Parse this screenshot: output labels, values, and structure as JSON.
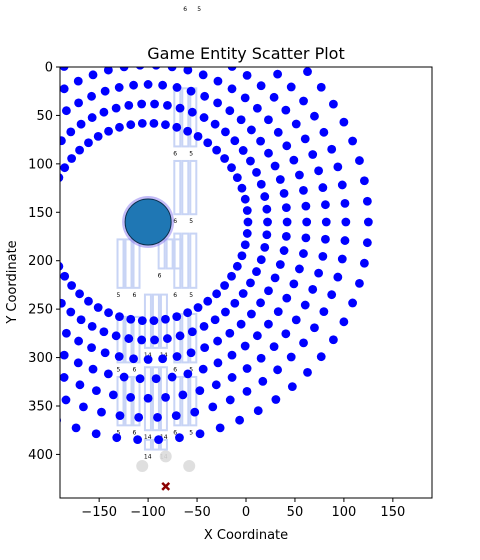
{
  "chart_data": {
    "type": "scatter",
    "title": "Game Entity Scatter Plot",
    "xlabel": "X Coordinate",
    "ylabel": "Y Coordinate",
    "xlim": [
      -190,
      190
    ],
    "ylim": [
      445,
      0
    ],
    "y_inverted": true,
    "xticks": [
      -150,
      -100,
      -50,
      0,
      50,
      100,
      150
    ],
    "yticks": [
      0,
      50,
      100,
      150,
      200,
      250,
      300,
      350,
      400
    ],
    "grid": false,
    "colors": {
      "dots": "#0000ff",
      "player": "#1f77b4",
      "player_edge": "#7b68ee",
      "bars": "#c8d4f5",
      "ghost": "#dcdcdc",
      "marker": "#8b0000"
    },
    "player": {
      "x": -100,
      "y": 160,
      "label": "player"
    },
    "marker": {
      "x": -82,
      "y": 433,
      "shape": "x"
    },
    "ghost_points": [
      [
        -106,
        412
      ],
      [
        -82,
        402
      ],
      [
        -58,
        412
      ]
    ],
    "rings": [
      {
        "center": [
          -100,
          160
        ],
        "radius": 102,
        "count": 54
      },
      {
        "center": [
          -100,
          160
        ],
        "radius": 122,
        "count": 58
      },
      {
        "center": [
          -100,
          160
        ],
        "radius": 142,
        "count": 60
      },
      {
        "center": [
          -100,
          160
        ],
        "radius": 162,
        "count": 62
      },
      {
        "center": [
          -100,
          160
        ],
        "radius": 182,
        "count": 64
      },
      {
        "center": [
          -100,
          160
        ],
        "radius": 202,
        "count": 66
      },
      {
        "center": [
          -100,
          160
        ],
        "radius": 225,
        "count": 66
      }
    ],
    "columns": [
      {
        "x": -62,
        "y_top": 22,
        "y_bottom": 82,
        "labels": [
          "6",
          "5"
        ]
      },
      {
        "x": -62,
        "y_top": 97,
        "y_bottom": 152,
        "labels": [
          "6",
          "5"
        ]
      },
      {
        "x": -62,
        "y_top": 172,
        "y_bottom": 228,
        "labels": [
          "6",
          "5"
        ]
      },
      {
        "x": -120,
        "y_top": 178,
        "y_bottom": 228,
        "labels": [
          "5",
          "6"
        ]
      },
      {
        "x": -78,
        "y_top": 178,
        "y_bottom": 208,
        "labels": [
          "6"
        ]
      },
      {
        "x": -92,
        "y_top": 235,
        "y_bottom": 290,
        "labels": [
          "14",
          "14"
        ]
      },
      {
        "x": -120,
        "y_top": 258,
        "y_bottom": 305,
        "labels": [
          "5",
          "6"
        ]
      },
      {
        "x": -62,
        "y_top": 255,
        "y_bottom": 305,
        "labels": [
          "6",
          "5"
        ]
      },
      {
        "x": -92,
        "y_top": 310,
        "y_bottom": 375,
        "labels": [
          "14",
          "14"
        ]
      },
      {
        "x": -120,
        "y_top": 320,
        "y_bottom": 370,
        "labels": [
          "5",
          "6"
        ]
      },
      {
        "x": -62,
        "y_top": 320,
        "y_bottom": 370,
        "labels": [
          "6",
          "5"
        ]
      },
      {
        "x": -92,
        "y_top": 385,
        "y_bottom": 395,
        "labels": [
          "14",
          "14"
        ]
      }
    ],
    "header_labels": [
      "6",
      "5"
    ]
  }
}
